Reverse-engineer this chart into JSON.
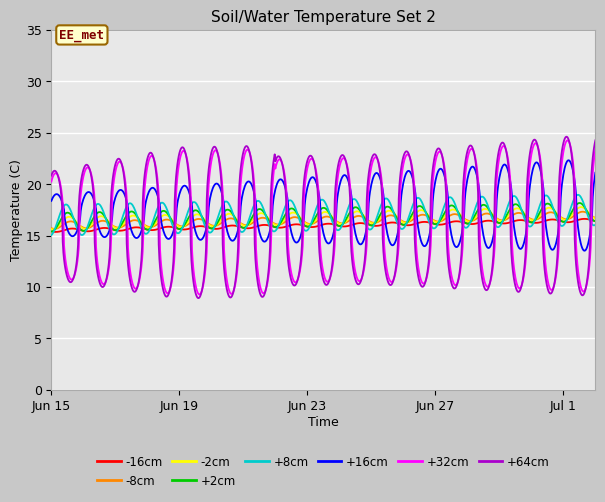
{
  "title": "Soil/Water Temperature Set 2",
  "xlabel": "Time",
  "ylabel": "Temperature (C)",
  "ylim": [
    0,
    35
  ],
  "yticks": [
    0,
    5,
    10,
    15,
    20,
    25,
    30,
    35
  ],
  "fig_bg": "#c8c8c8",
  "plot_bg": "#e8e8e8",
  "plot_bg_top": "#ffffff",
  "annotation_text": "EE_met",
  "annotation_bg": "#ffffcc",
  "annotation_border": "#996600",
  "annotation_text_color": "#800000",
  "legend_entries": [
    "-16cm",
    "-8cm",
    "-2cm",
    "+2cm",
    "+8cm",
    "+16cm",
    "+32cm",
    "+64cm"
  ],
  "line_colors": {
    "-16cm": "#ff0000",
    "-8cm": "#ff8800",
    "-2cm": "#ffff00",
    "+2cm": "#00cc00",
    "+8cm": "#00cccc",
    "+16cm": "#0000ff",
    "+32cm": "#ff00ff",
    "+64cm": "#aa00cc"
  },
  "x_tick_labels": [
    "Jun 15",
    "Jun 19",
    "Jun 23",
    "Jun 27",
    "Jul 1"
  ],
  "x_tick_positions": [
    0,
    4,
    8,
    12,
    16
  ]
}
